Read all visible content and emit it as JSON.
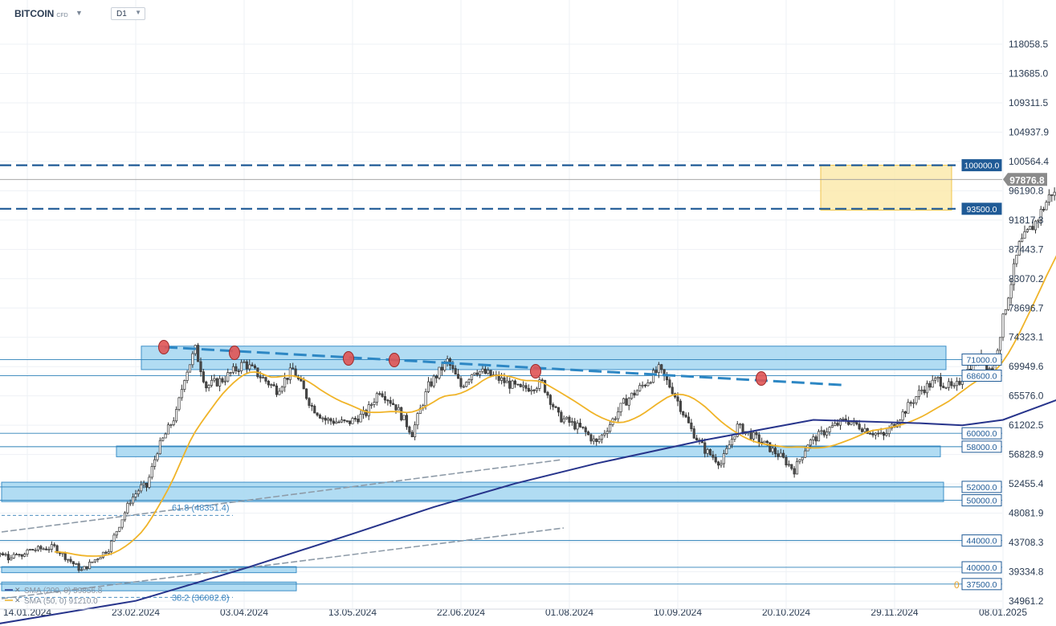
{
  "header": {
    "symbol": "BITCOIN",
    "symbol_suffix": "CFD",
    "timeframe": "D1"
  },
  "chart_data": {
    "type": "candlestick",
    "symbol": "BITCOIN",
    "timeframe": "D1",
    "last_price": 97876.8,
    "y_ticks": [
      118058.5,
      113685.0,
      109311.5,
      104937.9,
      100564.4,
      96190.8,
      91817.3,
      87443.7,
      83070.2,
      78696.7,
      74323.1,
      69949.6,
      65576.0,
      61202.5,
      56828.9,
      52455.4,
      48081.9,
      43708.3,
      39334.8,
      34961.2
    ],
    "x_ticks": [
      "14.01.2024",
      "23.02.2024",
      "03.04.2024",
      "13.05.2024",
      "22.06.2024",
      "01.08.2024",
      "10.09.2024",
      "20.10.2024",
      "29.11.2024",
      "08.01.2025"
    ],
    "price_levels": [
      {
        "label": "100000.0",
        "value": 100000,
        "style": "dashed-bold",
        "color": "#1f5a96"
      },
      {
        "label": "93500.0",
        "value": 93500,
        "style": "dashed-bold",
        "color": "#1f5a96"
      },
      {
        "label": "71000.0",
        "value": 71000,
        "style": "solid"
      },
      {
        "label": "68600.0",
        "value": 68600,
        "style": "solid"
      },
      {
        "label": "60000.0",
        "value": 60000,
        "style": "solid"
      },
      {
        "label": "58000.0",
        "value": 58000,
        "style": "solid"
      },
      {
        "label": "52000.0",
        "value": 52000,
        "style": "solid"
      },
      {
        "label": "50000.0",
        "value": 50000,
        "style": "solid"
      },
      {
        "label": "44000.0",
        "value": 44000,
        "style": "solid"
      },
      {
        "label": "40000.0",
        "value": 40000,
        "style": "solid"
      },
      {
        "label": "37500.0",
        "value": 37500,
        "style": "solid"
      }
    ],
    "zones": [
      {
        "from": 69500,
        "to": 73000,
        "color": "#a9d8f2"
      },
      {
        "from": 56500,
        "to": 58100,
        "color": "#a9d8f2"
      },
      {
        "from": 49800,
        "to": 52700,
        "color": "#a9d8f2"
      },
      {
        "from": 39200,
        "to": 40100,
        "color": "#a9d8f2"
      },
      {
        "from": 36500,
        "to": 37800,
        "color": "#a9d8f2"
      },
      {
        "from": 93300,
        "to": 100000,
        "color": "#fbe9a8"
      }
    ],
    "fib_labels": [
      "61.8 (48351.4)",
      "38.2 (36002.8)"
    ],
    "fib_digit": "0",
    "indicators": [
      {
        "name": "SMA (200, 0) 59856.8",
        "color": "#27348b"
      },
      {
        "name": "SMA (50, 0) 91210.0",
        "color": "#f0b429"
      }
    ],
    "colors": {
      "up": "#ffffff",
      "down": "#4a4a4a",
      "sma200": "#27348b",
      "sma50": "#f0b429",
      "level_tag": "#1f5a96",
      "price_tag": "#8a8a8a"
    }
  }
}
